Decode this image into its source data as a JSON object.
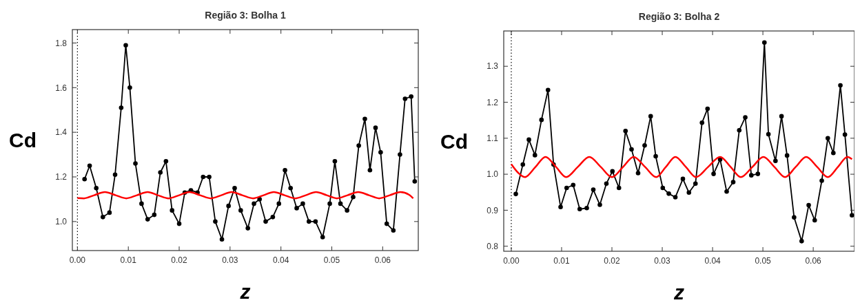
{
  "chart_data": [
    {
      "type": "line",
      "title": "Região 3: Bolha 1",
      "xlabel": "z",
      "ylabel": "Cd",
      "xlim": [
        -0.001,
        0.067
      ],
      "ylim": [
        0.87,
        1.86
      ],
      "xticks": [
        {
          "value": 0,
          "label": "0.00"
        },
        0.01,
        0.02,
        0.03,
        0.04,
        0.05,
        0.06
      ],
      "yticks": [
        {
          "value": 1,
          "label": "1.0"
        },
        {
          "value": 1.2,
          "label": "1.2"
        },
        {
          "value": 1.4,
          "label": "1.4"
        },
        {
          "value": 1.6,
          "label": "1.6"
        },
        {
          "value": 1.8,
          "label": "1.8"
        }
      ],
      "grid": false,
      "line_style": "solid",
      "ref_lines": [
        {
          "axis": "x",
          "value": 0,
          "line_style": "dotted",
          "color": "#000000"
        }
      ],
      "series": [
        {
          "color": "#000000",
          "marker": "circle",
          "x": [
            0.0014,
            0.0024,
            0.0037,
            0.005,
            0.0063,
            0.0074,
            0.0086,
            0.0095,
            0.0103,
            0.0114,
            0.0126,
            0.0138,
            0.0151,
            0.0163,
            0.0174,
            0.0186,
            0.02,
            0.0211,
            0.0223,
            0.0236,
            0.0247,
            0.0259,
            0.0271,
            0.0284,
            0.0297,
            0.0309,
            0.0321,
            0.0335,
            0.0347,
            0.0358,
            0.037,
            0.0384,
            0.0396,
            0.0408,
            0.0419,
            0.0431,
            0.0443,
            0.0455,
            0.0468,
            0.0482,
            0.0496,
            0.0506,
            0.0517,
            0.053,
            0.0542,
            0.0553,
            0.0565,
            0.0575,
            0.0586,
            0.0596,
            0.0608,
            0.0621,
            0.0634,
            0.0644,
            0.0656,
            0.0663
          ],
          "values": [
            1.19,
            1.25,
            1.15,
            1.02,
            1.04,
            1.21,
            1.51,
            1.79,
            1.6,
            1.26,
            1.08,
            1.01,
            1.03,
            1.22,
            1.27,
            1.05,
            0.99,
            1.13,
            1.14,
            1.13,
            1.2,
            1.2,
            1.0,
            0.92,
            1.07,
            1.15,
            1.05,
            0.97,
            1.08,
            1.1,
            1.0,
            1.02,
            1.08,
            1.23,
            1.15,
            1.06,
            1.08,
            1.0,
            1.0,
            0.93,
            1.08,
            1.27,
            1.08,
            1.05,
            1.11,
            1.34,
            1.46,
            1.23,
            1.42,
            1.31,
            0.99,
            0.96,
            1.3,
            1.55,
            1.56,
            1.18
          ]
        },
        {
          "color": "#ff0000",
          "marker": "none",
          "x": [
            0,
            0.0013,
            0.0033,
            0.0054,
            0.0075,
            0.0096,
            0.0117,
            0.0138,
            0.0158,
            0.0179,
            0.02,
            0.022,
            0.0241,
            0.0262,
            0.0283,
            0.0303,
            0.0324,
            0.0345,
            0.0366,
            0.0386,
            0.0407,
            0.0428,
            0.0449,
            0.0469,
            0.049,
            0.051,
            0.0531,
            0.0552,
            0.0573,
            0.0593,
            0.0614,
            0.0635,
            0.0652,
            0.066
          ],
          "values": [
            1.105,
            1.104,
            1.118,
            1.132,
            1.118,
            1.104,
            1.118,
            1.132,
            1.118,
            1.104,
            1.118,
            1.132,
            1.118,
            1.104,
            1.118,
            1.132,
            1.118,
            1.104,
            1.118,
            1.132,
            1.118,
            1.104,
            1.118,
            1.132,
            1.118,
            1.104,
            1.118,
            1.132,
            1.118,
            1.104,
            1.118,
            1.132,
            1.12,
            1.104
          ]
        }
      ]
    },
    {
      "type": "line",
      "title": "Região 3: Bolha 2",
      "xlabel": "z",
      "ylabel": "Cd",
      "xlim": [
        -0.0015,
        0.0682
      ],
      "ylim": [
        0.786,
        1.398
      ],
      "xticks": [
        {
          "value": 0,
          "label": "0.00"
        },
        0.01,
        0.02,
        0.03,
        0.04,
        0.05,
        0.06
      ],
      "yticks": [
        {
          "value": 0.8,
          "label": "0.8"
        },
        {
          "value": 0.9,
          "label": "0.9"
        },
        {
          "value": 1,
          "label": "1.0"
        },
        {
          "value": 1.1,
          "label": "1.1"
        },
        {
          "value": 1.2,
          "label": "1.2"
        },
        {
          "value": 1.3,
          "label": "1.3"
        }
      ],
      "grid": false,
      "line_style": "solid",
      "ref_lines": [
        {
          "axis": "x",
          "value": 0,
          "line_style": "dotted",
          "color": "#000000"
        }
      ],
      "series": [
        {
          "color": "#000000",
          "marker": "circle",
          "x": [
            0.0009,
            0.0023,
            0.0035,
            0.0047,
            0.006,
            0.0073,
            0.0084,
            0.0098,
            0.011,
            0.0123,
            0.0136,
            0.015,
            0.0163,
            0.0176,
            0.0189,
            0.0201,
            0.0214,
            0.0227,
            0.0239,
            0.0252,
            0.0265,
            0.0277,
            0.0287,
            0.0301,
            0.0313,
            0.0326,
            0.0341,
            0.0353,
            0.0366,
            0.0379,
            0.039,
            0.0402,
            0.0415,
            0.0428,
            0.0441,
            0.0453,
            0.0465,
            0.0477,
            0.049,
            0.0503,
            0.0511,
            0.0525,
            0.0537,
            0.0548,
            0.0562,
            0.0577,
            0.0591,
            0.0603,
            0.0617,
            0.0629,
            0.064,
            0.0654,
            0.0663,
            0.0677
          ],
          "values": [
            0.945,
            1.027,
            1.096,
            1.053,
            1.151,
            1.234,
            1.027,
            0.909,
            0.962,
            0.97,
            0.903,
            0.906,
            0.957,
            0.915,
            0.974,
            1.008,
            0.962,
            1.12,
            1.069,
            1.003,
            1.08,
            1.161,
            1.05,
            0.962,
            0.946,
            0.936,
            0.987,
            0.949,
            0.974,
            1.143,
            1.182,
            1.001,
            1.041,
            0.952,
            0.978,
            1.122,
            1.158,
            0.997,
            1.001,
            1.366,
            1.111,
            1.037,
            1.161,
            1.052,
            0.88,
            0.814,
            0.914,
            0.872,
            0.982,
            1.1,
            1.059,
            1.247,
            1.11,
            0.886
          ]
        },
        {
          "color": "#ff0000",
          "marker": "none",
          "x": [
            0,
            0.0013,
            0.0027,
            0.0048,
            0.0068,
            0.0089,
            0.0109,
            0.0132,
            0.0155,
            0.0178,
            0.02,
            0.0222,
            0.0243,
            0.0266,
            0.0288,
            0.0307,
            0.0326,
            0.0347,
            0.0367,
            0.0391,
            0.0415,
            0.0436,
            0.0456,
            0.0479,
            0.0501,
            0.0523,
            0.0544,
            0.0565,
            0.0586,
            0.0608,
            0.0629,
            0.0649,
            0.0668,
            0.0677
          ],
          "values": [
            1.028,
            1.005,
            0.992,
            1.02,
            1.048,
            1.02,
            0.992,
            1.02,
            1.048,
            1.02,
            0.992,
            1.02,
            1.048,
            1.02,
            0.992,
            1.02,
            1.048,
            1.02,
            0.992,
            1.02,
            1.048,
            1.02,
            0.992,
            1.02,
            1.048,
            1.02,
            0.992,
            1.02,
            1.048,
            1.02,
            0.992,
            1.02,
            1.048,
            1.042
          ]
        }
      ]
    }
  ]
}
